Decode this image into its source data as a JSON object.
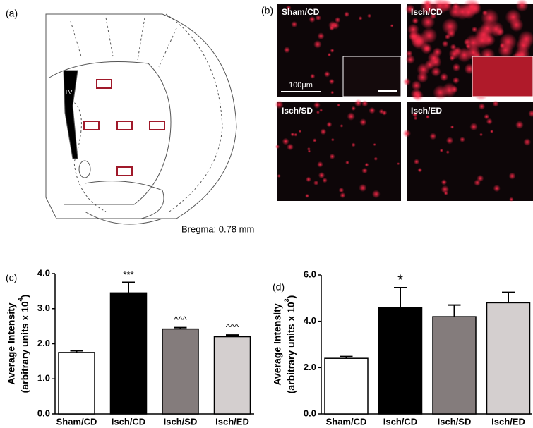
{
  "figure": {
    "panel_a": {
      "label": "(a)",
      "lv": "LV",
      "bregma": "Bregma: 0.78 mm"
    },
    "panel_b": {
      "label": "(b)",
      "images": [
        "Sham/CD",
        "Isch/CD",
        "Isch/SD",
        "Isch/ED"
      ],
      "scale_bar": "100μm"
    }
  },
  "chart_data": [
    {
      "type": "bar",
      "panel_label": "(c)",
      "ylabel": {
        "line1": "Average Intensity",
        "line2": "(arbitrary units x 10",
        "exponent": "4",
        "close": ")"
      },
      "categories": [
        "Sham/CD",
        "Isch/CD",
        "Isch/SD",
        "Isch/ED"
      ],
      "values": [
        1.75,
        3.45,
        2.42,
        2.2
      ],
      "errors": [
        0.05,
        0.3,
        0.04,
        0.05
      ],
      "colors": [
        "#ffffff",
        "#000000",
        "#847c7c",
        "#d4cfcf"
      ],
      "annotations": [
        null,
        "***",
        "^^^",
        "^^^"
      ],
      "ylim": [
        0,
        4.0
      ],
      "yticks": [
        {
          "value": 0,
          "label": "0.0"
        },
        {
          "value": 1,
          "label": "1.0"
        },
        {
          "value": 2,
          "label": "2.0"
        },
        {
          "value": 3,
          "label": "3.0"
        },
        {
          "value": 4,
          "label": "4.0"
        }
      ]
    },
    {
      "type": "bar",
      "panel_label": "(d)",
      "ylabel": {
        "line1": "Average Intensity",
        "line2": "(arbitrary units x 10",
        "exponent": "3",
        "close": ")"
      },
      "categories": [
        "Sham/CD",
        "Isch/CD",
        "Isch/SD",
        "Isch/ED"
      ],
      "values": [
        2.4,
        4.6,
        4.2,
        4.8
      ],
      "errors": [
        0.08,
        0.85,
        0.5,
        0.45
      ],
      "colors": [
        "#ffffff",
        "#000000",
        "#847c7c",
        "#d4cfcf"
      ],
      "annotations": [
        null,
        "*",
        null,
        null
      ],
      "ylim": [
        0,
        6.0
      ],
      "yticks": [
        {
          "value": 0,
          "label": "0.0"
        },
        {
          "value": 2,
          "label": "2.0"
        },
        {
          "value": 4,
          "label": "4.0"
        },
        {
          "value": 6,
          "label": "6.0"
        }
      ]
    }
  ]
}
